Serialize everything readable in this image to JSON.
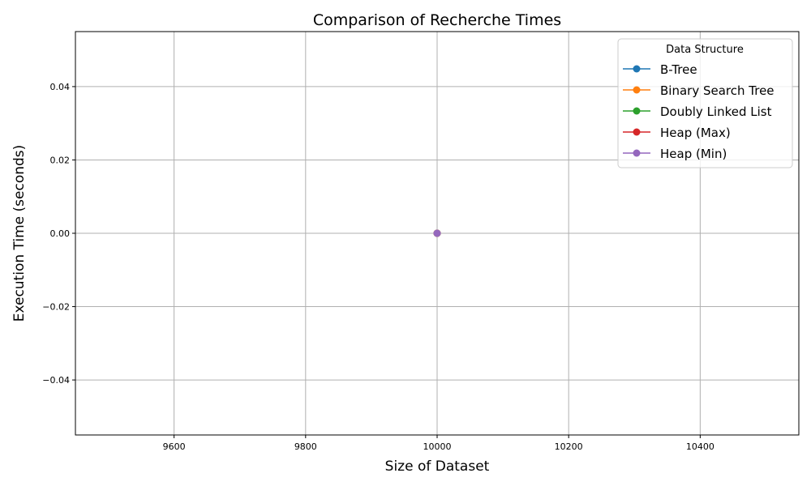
{
  "chart_data": {
    "type": "line",
    "title": "Comparison of Recherche Times",
    "xlabel": "Size of Dataset",
    "ylabel": "Execution Time (seconds)",
    "xlim": [
      9450,
      10550
    ],
    "ylim": [
      -0.055,
      0.055
    ],
    "xticks": [
      9600,
      9800,
      10000,
      10200,
      10400
    ],
    "yticks": [
      -0.04,
      -0.02,
      0.0,
      0.02,
      0.04
    ],
    "xtick_labels": [
      "9600",
      "9800",
      "10000",
      "10200",
      "10400"
    ],
    "ytick_labels": [
      "−0.04",
      "−0.02",
      "0.00",
      "0.02",
      "0.04"
    ],
    "grid": true,
    "legend": {
      "title": "Data Structure",
      "placement": "top-right"
    },
    "series": [
      {
        "name": "B-Tree",
        "color": "#1f77b4",
        "x": [
          10000
        ],
        "y": [
          0.0
        ]
      },
      {
        "name": "Binary Search Tree",
        "color": "#ff7f0e",
        "x": [
          10000
        ],
        "y": [
          0.0
        ]
      },
      {
        "name": "Doubly Linked List",
        "color": "#2ca02c",
        "x": [
          10000
        ],
        "y": [
          0.0
        ]
      },
      {
        "name": "Heap (Max)",
        "color": "#d62728",
        "x": [
          10000
        ],
        "y": [
          0.0
        ]
      },
      {
        "name": "Heap (Min)",
        "color": "#9467bd",
        "x": [
          10000
        ],
        "y": [
          0.0
        ]
      }
    ]
  }
}
